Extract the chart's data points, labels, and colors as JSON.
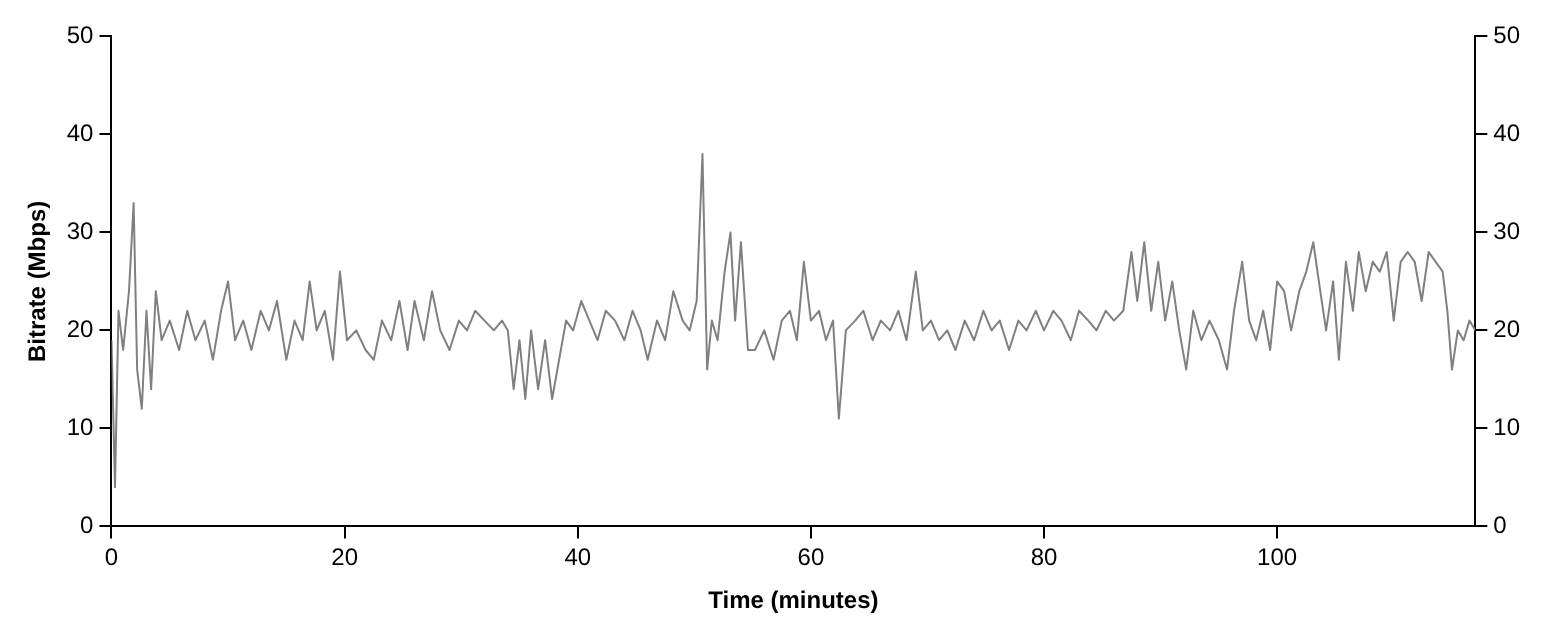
{
  "chart_data": {
    "type": "line",
    "xlabel": "Time (minutes)",
    "ylabel": "Bitrate (Mbps)",
    "xlim": [
      0,
      117
    ],
    "xticks": [
      0,
      20,
      40,
      60,
      80,
      100
    ],
    "ylim": [
      0,
      50
    ],
    "yticks": [
      0,
      10,
      20,
      30,
      40,
      50
    ],
    "y2lim": [
      0,
      50
    ],
    "y2ticks": [
      0,
      10,
      20,
      30,
      40,
      50
    ],
    "grid": false,
    "legend": false,
    "marker": "none",
    "line_style": "solid",
    "series": [
      {
        "color": "#808080",
        "x": [
          0,
          0.3,
          0.6,
          1.0,
          1.5,
          1.9,
          2.2,
          2.6,
          3.0,
          3.4,
          3.8,
          4.3,
          5,
          5.8,
          6.5,
          7.2,
          8,
          8.7,
          9.4,
          10,
          10.6,
          11.3,
          12,
          12.8,
          13.5,
          14.2,
          15,
          15.7,
          16.4,
          17,
          17.6,
          18.3,
          19,
          19.6,
          20.2,
          21,
          21.8,
          22.5,
          23.2,
          24,
          24.7,
          25.4,
          26,
          26.8,
          27.5,
          28.2,
          29,
          29.8,
          30.5,
          31.2,
          32,
          32.8,
          33.5,
          34,
          34.5,
          35,
          35.5,
          36,
          36.6,
          37.2,
          37.8,
          38.4,
          39,
          39.6,
          40.3,
          41,
          41.7,
          42.4,
          43.2,
          44,
          44.7,
          45.4,
          46,
          46.8,
          47.5,
          48.2,
          49,
          49.6,
          50.2,
          50.7,
          51.1,
          51.5,
          52,
          52.6,
          53.1,
          53.5,
          54,
          54.6,
          55.2,
          56,
          56.8,
          57.5,
          58.2,
          58.8,
          59.4,
          60,
          60.7,
          61.3,
          61.9,
          62.4,
          63,
          63.8,
          64.5,
          65.3,
          66,
          66.8,
          67.5,
          68.2,
          69,
          69.6,
          70.3,
          71,
          71.7,
          72.4,
          73.2,
          74,
          74.8,
          75.5,
          76.2,
          77,
          77.8,
          78.5,
          79.3,
          80,
          80.8,
          81.5,
          82.3,
          83,
          83.8,
          84.5,
          85.3,
          86,
          86.8,
          87.5,
          88,
          88.6,
          89.2,
          89.8,
          90.4,
          91,
          91.6,
          92.2,
          92.8,
          93.5,
          94.2,
          95,
          95.7,
          96.3,
          97,
          97.6,
          98.2,
          98.8,
          99.4,
          100,
          100.6,
          101.2,
          101.9,
          102.5,
          103.1,
          103.7,
          104.2,
          104.8,
          105.3,
          105.9,
          106.5,
          107,
          107.6,
          108.2,
          108.8,
          109.4,
          110,
          110.6,
          111.2,
          111.8,
          112.4,
          113,
          113.6,
          114.2,
          114.6,
          115,
          115.5,
          116,
          116.5,
          117
        ],
        "values": [
          19,
          4,
          22,
          18,
          24,
          33,
          16,
          12,
          22,
          14,
          24,
          19,
          21,
          18,
          22,
          19,
          21,
          17,
          22,
          25,
          19,
          21,
          18,
          22,
          20,
          23,
          17,
          21,
          19,
          25,
          20,
          22,
          17,
          26,
          19,
          20,
          18,
          17,
          21,
          19,
          23,
          18,
          23,
          19,
          24,
          20,
          18,
          21,
          20,
          22,
          21,
          20,
          21,
          20,
          14,
          19,
          13,
          20,
          14,
          19,
          13,
          17,
          21,
          20,
          23,
          21,
          19,
          22,
          21,
          19,
          22,
          20,
          17,
          21,
          19,
          24,
          21,
          20,
          23,
          38,
          16,
          21,
          19,
          26,
          30,
          21,
          29,
          18,
          18,
          20,
          17,
          21,
          22,
          19,
          27,
          21,
          22,
          19,
          21,
          11,
          20,
          21,
          22,
          19,
          21,
          20,
          22,
          19,
          26,
          20,
          21,
          19,
          20,
          18,
          21,
          19,
          22,
          20,
          21,
          18,
          21,
          20,
          22,
          20,
          22,
          21,
          19,
          22,
          21,
          20,
          22,
          21,
          22,
          28,
          23,
          29,
          22,
          27,
          21,
          25,
          20,
          16,
          22,
          19,
          21,
          19,
          16,
          22,
          27,
          21,
          19,
          22,
          18,
          25,
          24,
          20,
          24,
          26,
          29,
          24,
          20,
          25,
          17,
          27,
          22,
          28,
          24,
          27,
          26,
          28,
          21,
          27,
          28,
          27,
          23,
          28,
          27,
          26,
          22,
          16,
          20,
          19,
          21,
          20
        ]
      }
    ]
  }
}
